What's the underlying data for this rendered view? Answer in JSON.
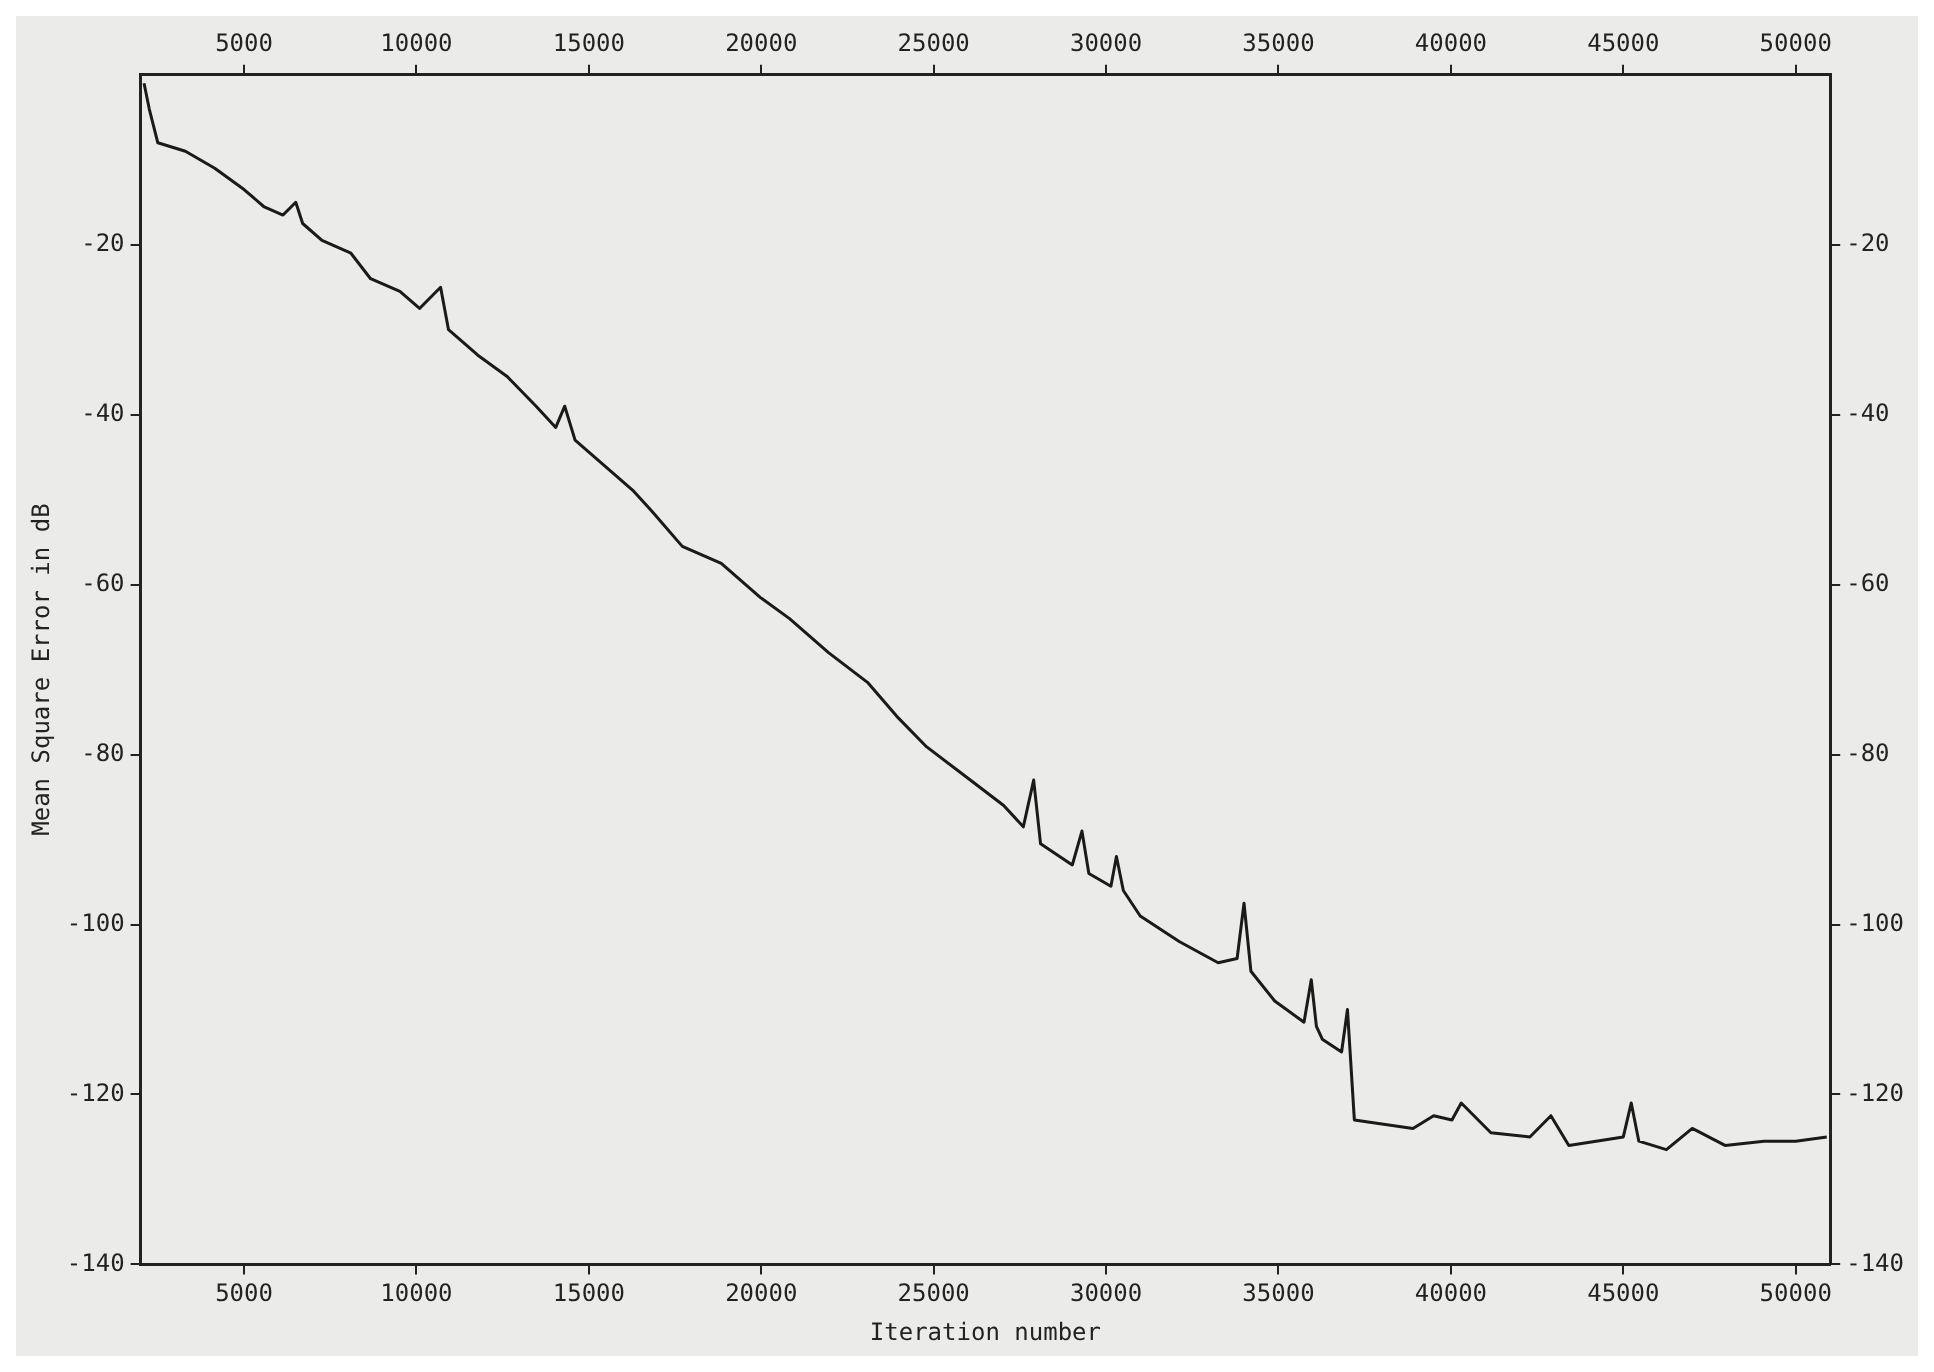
{
  "chart_data": {
    "type": "line",
    "xlabel": "Iteration number",
    "ylabel": "Mean Square Error in dB",
    "xlim": [
      2000,
      51000
    ],
    "xticks": [
      5000,
      10000,
      15000,
      20000,
      25000,
      30000,
      35000,
      40000,
      45000,
      50000
    ],
    "x2lim": [
      2000,
      51000
    ],
    "x2ticks": [
      5000,
      10000,
      15000,
      20000,
      25000,
      30000,
      35000,
      40000,
      45000,
      50000
    ],
    "ylim": [
      -140,
      0
    ],
    "yticks": [
      -140,
      -120,
      -100,
      -80,
      -60,
      -40,
      -20
    ],
    "y2lim": [
      -140,
      0
    ],
    "y2ticks": [
      -140,
      -120,
      -100,
      -80,
      -60,
      -40,
      -20
    ],
    "grid": false,
    "legend": false,
    "marker": "none",
    "line_style": "solid",
    "series": [
      {
        "color": "#1a1a1a",
        "x": [
          2100,
          2250,
          2500,
          3300,
          4150,
          5000,
          5570,
          6130,
          6500,
          6700,
          7260,
          8100,
          8670,
          9520,
          10090,
          10700,
          10930,
          11780,
          12630,
          13470,
          14040,
          14300,
          14600,
          15450,
          16300,
          16860,
          17710,
          18840,
          19970,
          20820,
          21950,
          23080,
          23930,
          24770,
          25900,
          27030,
          27600,
          27900,
          28100,
          29020,
          29300,
          29500,
          30140,
          30300,
          30500,
          30990,
          32120,
          33250,
          33800,
          34000,
          34200,
          34890,
          35740,
          35950,
          36100,
          36270,
          36830,
          37000,
          37200,
          38050,
          38900,
          39500,
          40030,
          40300,
          41160,
          42290,
          42900,
          43420,
          45000,
          45230,
          45450,
          46250,
          47000,
          47950,
          49080,
          50000,
          50900
        ],
        "values": [
          -1,
          -4,
          -8,
          -9,
          -11,
          -13.5,
          -15.5,
          -16.5,
          -15,
          -17.5,
          -19.5,
          -21,
          -24,
          -25.5,
          -27.5,
          -25,
          -30,
          -33,
          -35.5,
          -39,
          -41.5,
          -39,
          -43,
          -46,
          -49,
          -51.5,
          -55.5,
          -57.5,
          -61.5,
          -64,
          -68,
          -71.5,
          -75.5,
          -79,
          -82.5,
          -86,
          -88.5,
          -83,
          -90.5,
          -93,
          -89,
          -94,
          -95.5,
          -92,
          -96,
          -99,
          -102,
          -104.5,
          -104,
          -97.5,
          -105.5,
          -109,
          -111.5,
          -106.5,
          -112,
          -113.5,
          -115,
          -110,
          -123,
          -123.5,
          -124,
          -122.5,
          -123,
          -121,
          -124.5,
          -125,
          -122.5,
          -126,
          -125,
          -121,
          -125.5,
          -126.5,
          -124,
          -126,
          -125.5,
          -125.5,
          -125
        ]
      }
    ]
  }
}
